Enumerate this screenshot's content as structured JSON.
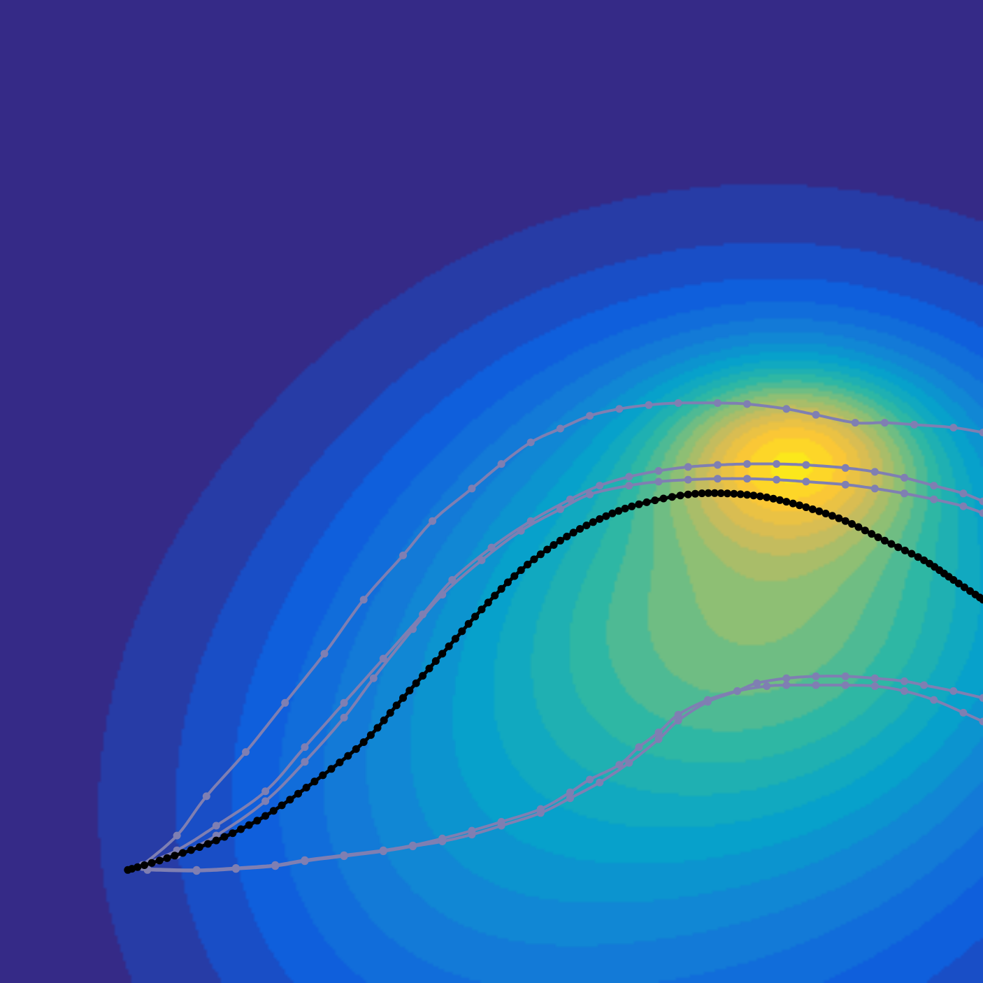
{
  "chart_data": {
    "type": "line",
    "background": "filled-contour",
    "axes_visible": false,
    "grid": false,
    "legend": "none",
    "colormap": [
      "#352a87",
      "#0f5cdd",
      "#1481d6",
      "#06a4ca",
      "#2eb7a4",
      "#87bf77",
      "#d1bb59",
      "#fec832",
      "#f9fb0e"
    ],
    "colors": {
      "trajectory": "#7f7fb2",
      "reference": "#000000"
    },
    "field_sources": [
      {
        "x": 0.81,
        "y": 0.46,
        "sx": 0.09,
        "sy": 0.06,
        "w": 0.5
      },
      {
        "x": 0.8,
        "y": 0.58,
        "sx": 0.22,
        "sy": 0.17,
        "w": 0.45
      },
      {
        "x": 0.72,
        "y": 0.78,
        "sx": 0.26,
        "sy": 0.25,
        "w": 0.25
      },
      {
        "x": 0.42,
        "y": 0.85,
        "sx": 0.18,
        "sy": 0.2,
        "w": 0.15
      }
    ],
    "series": [
      {
        "style": "reference",
        "markers": "dense",
        "x": [
          0.13,
          0.17,
          0.22,
          0.27,
          0.32,
          0.37,
          0.41,
          0.45,
          0.49,
          0.53,
          0.57,
          0.61,
          0.65,
          0.7,
          0.74,
          0.78,
          0.82,
          0.86,
          0.9,
          0.94,
          0.97,
          1.0
        ],
        "y": [
          0.885,
          0.873,
          0.855,
          0.83,
          0.795,
          0.755,
          0.71,
          0.665,
          0.62,
          0.58,
          0.55,
          0.528,
          0.513,
          0.503,
          0.502,
          0.506,
          0.516,
          0.53,
          0.55,
          0.57,
          0.59,
          0.61
        ]
      },
      {
        "style": "trajectory",
        "x": [
          0.145,
          0.18,
          0.21,
          0.25,
          0.29,
          0.33,
          0.37,
          0.41,
          0.44,
          0.48,
          0.51,
          0.54,
          0.57,
          0.6,
          0.63,
          0.66,
          0.69,
          0.73,
          0.76,
          0.8,
          0.83,
          0.87,
          0.9,
          0.93,
          0.97,
          1.0
        ],
        "y": [
          0.88,
          0.85,
          0.81,
          0.765,
          0.715,
          0.665,
          0.61,
          0.565,
          0.53,
          0.497,
          0.472,
          0.45,
          0.436,
          0.423,
          0.416,
          0.412,
          0.41,
          0.41,
          0.411,
          0.416,
          0.422,
          0.43,
          0.43,
          0.432,
          0.435,
          0.44
        ]
      },
      {
        "style": "trajectory",
        "x": [
          0.145,
          0.18,
          0.22,
          0.27,
          0.31,
          0.35,
          0.39,
          0.43,
          0.46,
          0.5,
          0.54,
          0.58,
          0.61,
          0.64,
          0.67,
          0.7,
          0.73,
          0.76,
          0.79,
          0.82,
          0.86,
          0.89,
          0.92,
          0.95,
          0.98,
          1.0
        ],
        "y": [
          0.88,
          0.865,
          0.84,
          0.805,
          0.76,
          0.715,
          0.67,
          0.625,
          0.59,
          0.557,
          0.53,
          0.508,
          0.494,
          0.485,
          0.479,
          0.475,
          0.473,
          0.472,
          0.472,
          0.473,
          0.476,
          0.48,
          0.486,
          0.494,
          0.502,
          0.51
        ]
      },
      {
        "style": "trajectory",
        "x": [
          0.145,
          0.18,
          0.22,
          0.27,
          0.31,
          0.35,
          0.38,
          0.42,
          0.45,
          0.49,
          0.53,
          0.57,
          0.6,
          0.64,
          0.67,
          0.7,
          0.73,
          0.76,
          0.79,
          0.82,
          0.86,
          0.89,
          0.92,
          0.95,
          0.98,
          1.0
        ],
        "y": [
          0.882,
          0.87,
          0.85,
          0.815,
          0.775,
          0.73,
          0.69,
          0.64,
          0.605,
          0.57,
          0.54,
          0.518,
          0.503,
          0.494,
          0.49,
          0.488,
          0.487,
          0.487,
          0.488,
          0.49,
          0.493,
          0.497,
          0.502,
          0.508,
          0.515,
          0.522
        ]
      },
      {
        "style": "trajectory",
        "x": [
          0.15,
          0.2,
          0.24,
          0.28,
          0.31,
          0.35,
          0.39,
          0.42,
          0.45,
          0.48,
          0.51,
          0.55,
          0.58,
          0.61,
          0.64,
          0.67,
          0.69,
          0.72,
          0.75,
          0.77,
          0.8,
          0.83,
          0.86,
          0.89,
          0.92,
          0.94,
          0.97,
          1.0
        ],
        "y": [
          0.885,
          0.886,
          0.884,
          0.881,
          0.876,
          0.871,
          0.866,
          0.861,
          0.856,
          0.849,
          0.84,
          0.827,
          0.812,
          0.796,
          0.776,
          0.752,
          0.733,
          0.714,
          0.703,
          0.695,
          0.69,
          0.688,
          0.688,
          0.69,
          0.693,
          0.697,
          0.703,
          0.71
        ]
      },
      {
        "style": "trajectory",
        "x": [
          0.15,
          0.2,
          0.24,
          0.28,
          0.31,
          0.35,
          0.39,
          0.42,
          0.45,
          0.48,
          0.51,
          0.55,
          0.58,
          0.6,
          0.63,
          0.65,
          0.67,
          0.69,
          0.72,
          0.75,
          0.78,
          0.8,
          0.83,
          0.86,
          0.89,
          0.92,
          0.95,
          0.98,
          1.0
        ],
        "y": [
          0.884,
          0.885,
          0.883,
          0.88,
          0.875,
          0.87,
          0.865,
          0.86,
          0.853,
          0.845,
          0.836,
          0.823,
          0.806,
          0.793,
          0.778,
          0.76,
          0.745,
          0.727,
          0.712,
          0.703,
          0.698,
          0.697,
          0.697,
          0.697,
          0.698,
          0.703,
          0.712,
          0.725,
          0.734
        ]
      }
    ]
  }
}
